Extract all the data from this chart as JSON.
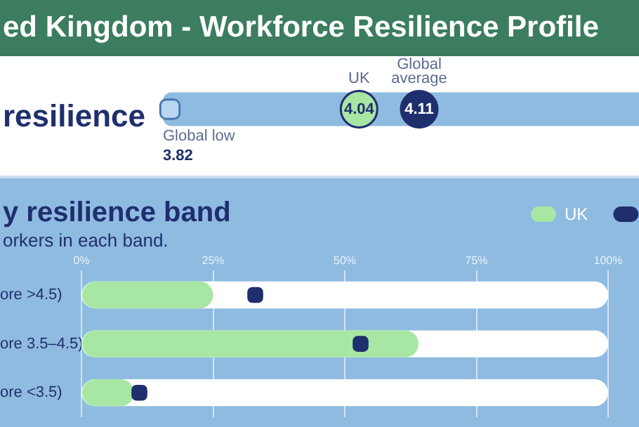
{
  "chart_data": [
    {
      "type": "other",
      "title": "ed Kingdom - Workforce Resilience Profile",
      "subtitle": "resilience",
      "categories": [
        "Global low",
        "UK",
        "Global average"
      ],
      "values": [
        3.82,
        4.04,
        4.11
      ],
      "data_labels": true
    },
    {
      "type": "bar",
      "orientation": "horizontal",
      "title": "y resilience band",
      "subtitle": "orkers in each band.",
      "categories": [
        "ore >4.5)",
        "ore 3.5–4.5)",
        "ore <3.5)"
      ],
      "series": [
        {
          "name": "UK",
          "color": "#a8e6a3",
          "values": [
            25,
            64,
            10
          ]
        },
        {
          "type": "scatter",
          "color": "#1f2f6e",
          "values": [
            33,
            53,
            11
          ]
        }
      ],
      "xlim": [
        0,
        100
      ],
      "xticks": [
        {
          "value": 0,
          "label": "0%"
        },
        {
          "value": 25,
          "label": "25%"
        },
        {
          "value": 50,
          "label": "50%"
        },
        {
          "value": 75,
          "label": "75%"
        },
        {
          "value": 100,
          "label": "100%"
        }
      ],
      "grid": "x",
      "legend": "top right"
    }
  ]
}
